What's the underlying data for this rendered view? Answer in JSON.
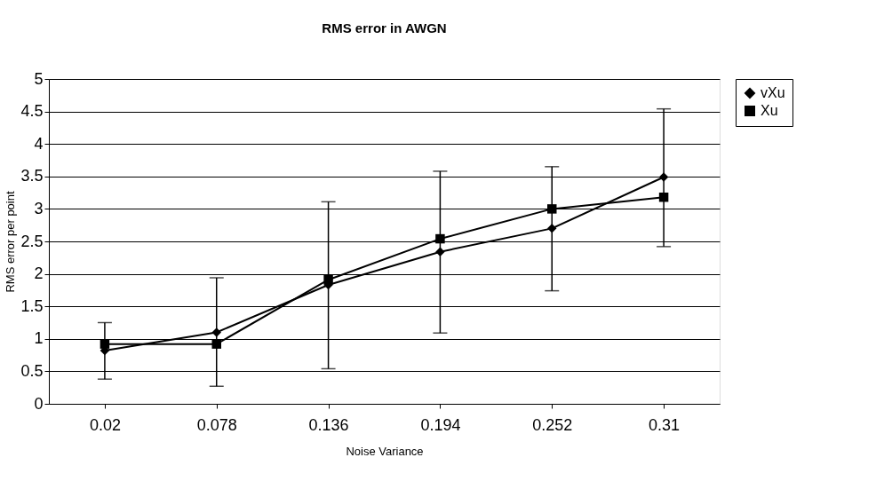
{
  "chart_data": {
    "type": "line",
    "title": "RMS error in AWGN",
    "xlabel": "Noise Variance",
    "ylabel": "RMS error per point",
    "categories": [
      "0.02",
      "0.078",
      "0.136",
      "0.194",
      "0.252",
      "0.31"
    ],
    "series": [
      {
        "name": "vXu",
        "color": "#000000",
        "marker": "diamond",
        "values": [
          0.82,
          1.1,
          1.83,
          2.34,
          2.7,
          3.49
        ],
        "errors": [
          [
            0.38,
            1.25
          ],
          [
            0.27,
            1.94
          ],
          [
            0.54,
            3.11
          ],
          [
            1.09,
            3.58
          ],
          [
            1.74,
            3.65
          ],
          [
            2.42,
            4.54
          ]
        ]
      },
      {
        "name": "Xu",
        "color": "#000000",
        "marker": "square",
        "values": [
          0.92,
          0.92,
          1.91,
          2.54,
          3.0,
          3.18
        ]
      }
    ],
    "ylim": [
      0,
      5
    ],
    "yticks": [
      0,
      0.5,
      1,
      1.5,
      2,
      2.5,
      3,
      3.5,
      4,
      4.5,
      5
    ],
    "grid": "y",
    "legend": "right",
    "line_style": "solid"
  }
}
